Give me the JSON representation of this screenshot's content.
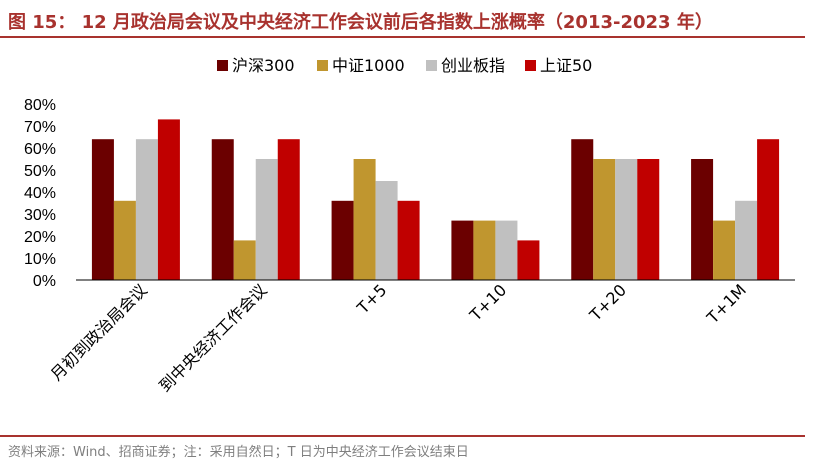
{
  "header": {
    "title": "图 15： 12 月政治局会议及中央经济工作会议前后各指数上涨概率（2013-2023 年）"
  },
  "footer": {
    "source": "资料来源：Wind、招商证券；注：采用自然日；T 日为中央经济工作会议结束日"
  },
  "chart_data": {
    "type": "bar",
    "categories": [
      "月初到政治局会议",
      "到中央经济工作会议",
      "T+5",
      "T+10",
      "T+20",
      "T+1M"
    ],
    "series": [
      {
        "name": "沪深300",
        "color": "#6b0000",
        "values": [
          64,
          64,
          36,
          27,
          64,
          55
        ]
      },
      {
        "name": "中证1000",
        "color": "#c0962f",
        "values": [
          36,
          18,
          55,
          27,
          55,
          27
        ]
      },
      {
        "name": "创业板指",
        "color": "#c0c0c0",
        "values": [
          64,
          55,
          45,
          27,
          55,
          36
        ]
      },
      {
        "name": "上证50",
        "color": "#c00000",
        "values": [
          73,
          64,
          36,
          18,
          55,
          64
        ]
      }
    ],
    "yticks": [
      "0%",
      "10%",
      "20%",
      "30%",
      "40%",
      "50%",
      "60%",
      "70%",
      "80%"
    ],
    "ylim": [
      0,
      80
    ],
    "grid": false,
    "legend_position": "top-center"
  }
}
